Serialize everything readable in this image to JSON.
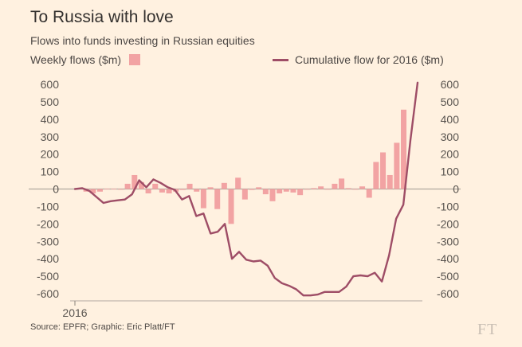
{
  "header": {
    "title": "To Russia with love",
    "subtitle": "Flows into funds investing in Russian equities"
  },
  "legend": {
    "bars_label": "Weekly flows ($m)",
    "line_label": "Cumulative flow for 2016 ($m)"
  },
  "footer": {
    "source": "Source: EPFR; Graphic: Eric Platt/FT",
    "logo": "FT"
  },
  "colors": {
    "bars": "#f2a3a3",
    "line": "#9e4d66",
    "zero": "#b0a89f",
    "grid": "#e8dccc"
  },
  "chart_data": {
    "type": "bar+line",
    "title": "To Russia with love",
    "subtitle": "Flows into funds investing in Russian equities",
    "ylim": [
      -600,
      600
    ],
    "yticks": [
      600,
      500,
      400,
      300,
      200,
      100,
      0,
      -100,
      -200,
      -300,
      -400,
      -500,
      -600
    ],
    "x_tick_label": "2016",
    "series": [
      {
        "name": "Weekly flows ($m)",
        "type": "bar",
        "values": [
          5,
          -15,
          -25,
          -15,
          2,
          2,
          0,
          30,
          80,
          40,
          -25,
          30,
          -20,
          -25,
          -15,
          -5,
          30,
          -15,
          -110,
          10,
          -115,
          35,
          -200,
          65,
          -60,
          -5,
          10,
          -30,
          -70,
          -25,
          -15,
          -20,
          -35,
          0,
          5,
          15,
          0,
          30,
          60,
          5,
          0,
          15,
          -50,
          155,
          210,
          80,
          265,
          455
        ]
      },
      {
        "name": "Cumulative flow for 2016 ($m)",
        "type": "line",
        "values": [
          0,
          5,
          -10,
          -45,
          -80,
          -70,
          -65,
          -60,
          -30,
          50,
          10,
          55,
          35,
          10,
          -5,
          -60,
          -40,
          -155,
          -140,
          -255,
          -245,
          -200,
          -400,
          -360,
          -405,
          -415,
          -410,
          -440,
          -510,
          -540,
          -555,
          -575,
          -610,
          -610,
          -605,
          -590,
          -590,
          -590,
          -560,
          -500,
          -495,
          -500,
          -480,
          -530,
          -380,
          -170,
          -90,
          280,
          610
        ]
      }
    ]
  }
}
